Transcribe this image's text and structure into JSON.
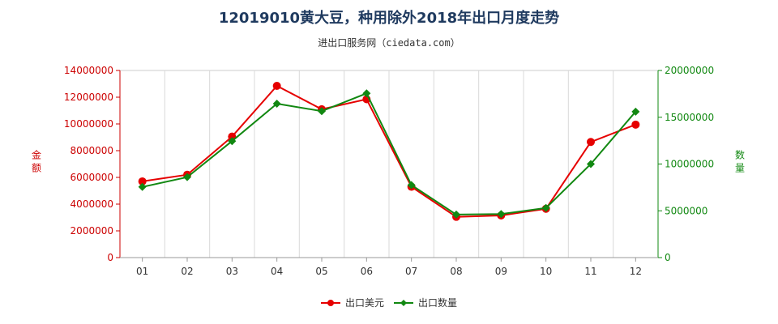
{
  "chart_data": {
    "type": "line",
    "title": "12019010黄大豆，种用除外2018年出口月度走势",
    "subtitle": "进出口服务网（ciedata.com）",
    "categories": [
      "01",
      "02",
      "03",
      "04",
      "05",
      "06",
      "07",
      "08",
      "09",
      "10",
      "11",
      "12"
    ],
    "y_left": {
      "label": "金额",
      "min": 0,
      "max": 14000000,
      "ticks": [
        "0",
        "2000000",
        "4000000",
        "6000000",
        "8000000",
        "10000000",
        "12000000",
        "14000000"
      ]
    },
    "y_right": {
      "label": "数量",
      "min": 0,
      "max": 20000000,
      "ticks": [
        "0",
        "5000000",
        "10000000",
        "15000000",
        "20000000"
      ]
    },
    "grid": "vertical",
    "legend_position": "bottom-center",
    "series": [
      {
        "name": "出口美元",
        "axis": "left",
        "color": "#e60000",
        "marker": "circle",
        "values": [
          5700000,
          6200000,
          9050000,
          12850000,
          11100000,
          11850000,
          5300000,
          3050000,
          3150000,
          3650000,
          8650000,
          9950000
        ]
      },
      {
        "name": "出口数量",
        "axis": "right",
        "color": "#118811",
        "marker": "diamond",
        "values": [
          7550000,
          8600000,
          12450000,
          16450000,
          15650000,
          17550000,
          7750000,
          4600000,
          4650000,
          5300000,
          10000000,
          15600000
        ]
      }
    ]
  }
}
